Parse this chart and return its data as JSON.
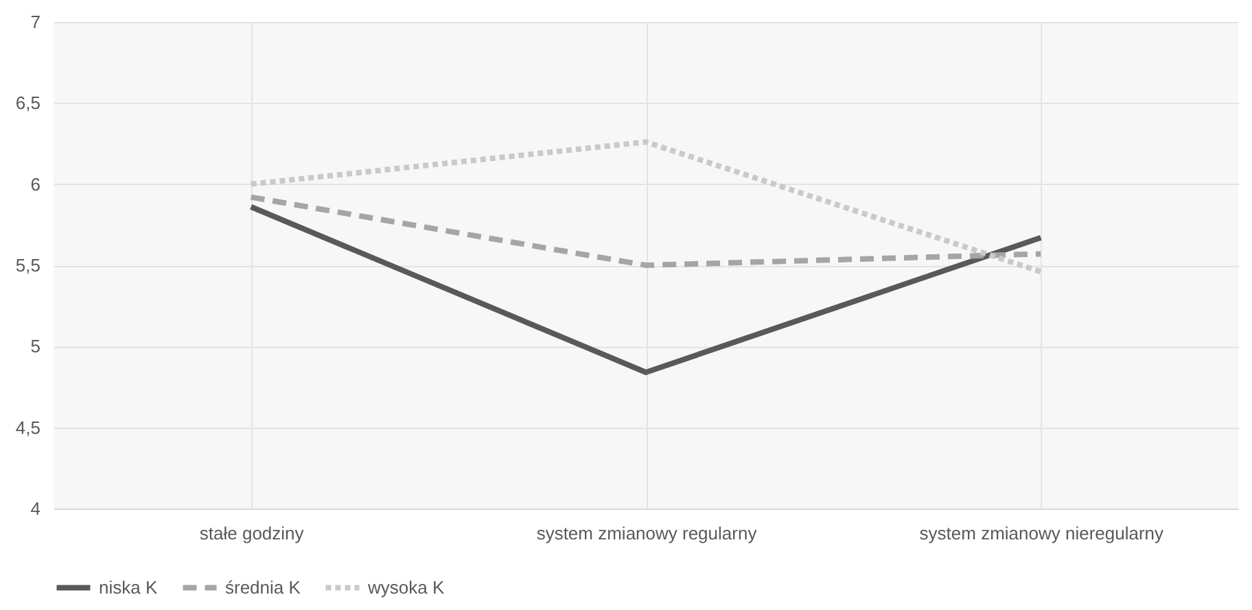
{
  "chart_data": {
    "type": "line",
    "categories": [
      "stałe godziny",
      "system zmianowy regularny",
      "system zmianowy nieregularny"
    ],
    "series": [
      {
        "name": "niska K",
        "color": "#595959",
        "line_style": "solid",
        "values": [
          5.86,
          4.84,
          5.67
        ]
      },
      {
        "name": "średnia K",
        "color": "#a5a5a5",
        "line_style": "dashed",
        "values": [
          5.92,
          5.5,
          5.57
        ]
      },
      {
        "name": "wysoka K",
        "color": "#c9c9c9",
        "line_style": "dotted",
        "values": [
          6.0,
          6.26,
          5.46
        ]
      }
    ],
    "ylim": [
      4,
      7
    ],
    "yticks": [
      {
        "value": 4,
        "label": "4"
      },
      {
        "value": 4.5,
        "label": "4,5"
      },
      {
        "value": 5,
        "label": "5"
      },
      {
        "value": 5.5,
        "label": "5,5"
      },
      {
        "value": 6,
        "label": "6"
      },
      {
        "value": 6.5,
        "label": "6,5"
      },
      {
        "value": 7,
        "label": "7"
      }
    ],
    "grid": true,
    "legend": "bottom",
    "marker": "none"
  }
}
